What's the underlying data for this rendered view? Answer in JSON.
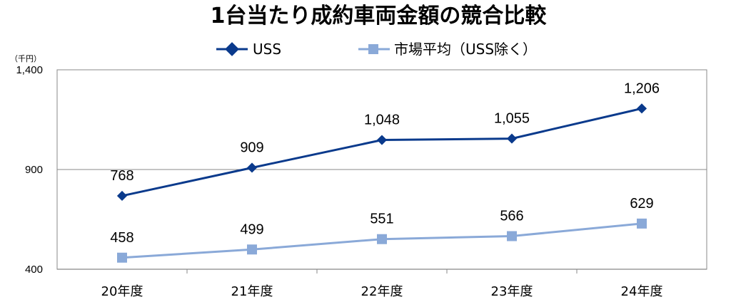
{
  "chart_data": {
    "type": "line",
    "title": "1台当たり成約車両金額の競合比較",
    "unit_label": "（千円）",
    "categories": [
      "20年度",
      "21年度",
      "22年度",
      "23年度",
      "24年度"
    ],
    "series": [
      {
        "name": "USS",
        "values": [
          768,
          909,
          1048,
          1055,
          1206
        ],
        "labels": [
          "768",
          "909",
          "1,048",
          "1,055",
          "1,206"
        ],
        "color": "#0a3a8c",
        "marker": "diamond"
      },
      {
        "name": "市場平均（USS除く）",
        "values": [
          458,
          499,
          551,
          566,
          629
        ],
        "labels": [
          "458",
          "499",
          "551",
          "566",
          "629"
        ],
        "color": "#8aa9d8",
        "marker": "square"
      }
    ],
    "y_ticks": [
      400,
      900,
      1400
    ],
    "y_tick_labels": [
      "400",
      "900",
      "1,400"
    ],
    "ylim": [
      400,
      1400
    ],
    "legend_position": "top",
    "grid": true,
    "colors": {
      "axis": "#888888",
      "gridline": "#888888",
      "plot_border": "#888888"
    }
  }
}
